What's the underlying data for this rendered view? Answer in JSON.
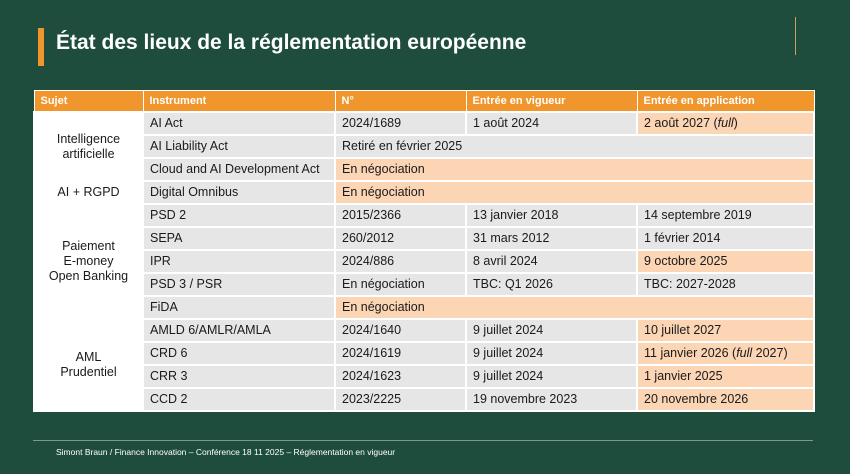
{
  "title": "État des lieux de la réglementation européenne",
  "table": {
    "header": [
      "Sujet",
      "Instrument",
      "N°",
      "Entrée en vigueur",
      "Entrée en application"
    ],
    "groups": [
      {
        "subject": [
          "Intelligence",
          "artificielle"
        ],
        "rows": [
          {
            "cells": [
              {
                "text": "AI Act"
              },
              {
                "text": "2024/1689"
              },
              {
                "text": "1 août 2024"
              },
              {
                "runs": [
                  {
                    "t": "2 août 2027 ("
                  },
                  {
                    "t": "full",
                    "italic": true
                  },
                  {
                    "t": ")"
                  }
                ],
                "fill": "#fcd5b4"
              }
            ]
          },
          {
            "cells": [
              {
                "text": "AI Liability Act"
              },
              {
                "text": "Retiré en février 2025",
                "span": 3
              }
            ]
          },
          {
            "cells": [
              {
                "text": "Cloud and AI Development Act"
              },
              {
                "text": "En négociation",
                "span": 3,
                "fill": "#fcd5b4"
              }
            ]
          }
        ]
      },
      {
        "subject": [
          "AI + RGPD"
        ],
        "rows": [
          {
            "cells": [
              {
                "text": "Digital Omnibus"
              },
              {
                "text": "En négociation",
                "span": 3,
                "fill": "#fcd5b4"
              }
            ]
          }
        ]
      },
      {
        "subject": [
          "Paiement",
          "E-money",
          "Open Banking"
        ],
        "rows": [
          {
            "cells": [
              {
                "text": "PSD 2"
              },
              {
                "text": "2015/2366"
              },
              {
                "text": "13 janvier 2018"
              },
              {
                "text": "14 septembre 2019"
              }
            ]
          },
          {
            "cells": [
              {
                "text": "SEPA"
              },
              {
                "text": "260/2012"
              },
              {
                "text": "31 mars 2012"
              },
              {
                "text": "1 février 2014"
              }
            ]
          },
          {
            "cells": [
              {
                "text": "IPR"
              },
              {
                "text": "2024/886"
              },
              {
                "text": "8 avril 2024"
              },
              {
                "text": "9 octobre 2025",
                "fill": "#fcd5b4"
              }
            ]
          },
          {
            "cells": [
              {
                "text": "PSD 3 / PSR"
              },
              {
                "text": "En négociation"
              },
              {
                "text": "TBC: Q1 2026"
              },
              {
                "text": "TBC: 2027-2028"
              }
            ]
          },
          {
            "cells": [
              {
                "text": "FiDA"
              },
              {
                "text": "En négociation",
                "span": 3,
                "fill": "#fcd5b4"
              }
            ]
          }
        ]
      },
      {
        "subject": [
          "AML",
          "Prudentiel"
        ],
        "rows": [
          {
            "cells": [
              {
                "text": "AMLD 6/AMLR/AMLA"
              },
              {
                "text": "2024/1640"
              },
              {
                "text": "9 juillet 2024"
              },
              {
                "text": "10 juillet 2027",
                "fill": "#fcd5b4"
              }
            ]
          },
          {
            "cells": [
              {
                "text": "CRD 6"
              },
              {
                "text": "2024/1619"
              },
              {
                "text": "9 juillet 2024"
              },
              {
                "runs": [
                  {
                    "t": "11 janvier 2026 ("
                  },
                  {
                    "t": "full",
                    "italic": true
                  },
                  {
                    "t": " 2027)"
                  }
                ],
                "fill": "#fcd5b4"
              }
            ]
          },
          {
            "cells": [
              {
                "text": "CRR 3"
              },
              {
                "text": "2024/1623"
              },
              {
                "text": "9 juillet 2024"
              },
              {
                "text": "1 janvier 2025",
                "fill": "#fcd5b4"
              }
            ]
          },
          {
            "cells": [
              {
                "text": "CCD 2"
              },
              {
                "text": "2023/2225"
              },
              {
                "text": "19 novembre 2023"
              },
              {
                "text": "20 novembre 2026",
                "fill": "#fcd5b4"
              }
            ]
          }
        ]
      }
    ]
  },
  "footer": "Simont Braun / Finance Innovation – Conférence 18 11 2025 – Réglementation en vigueur"
}
